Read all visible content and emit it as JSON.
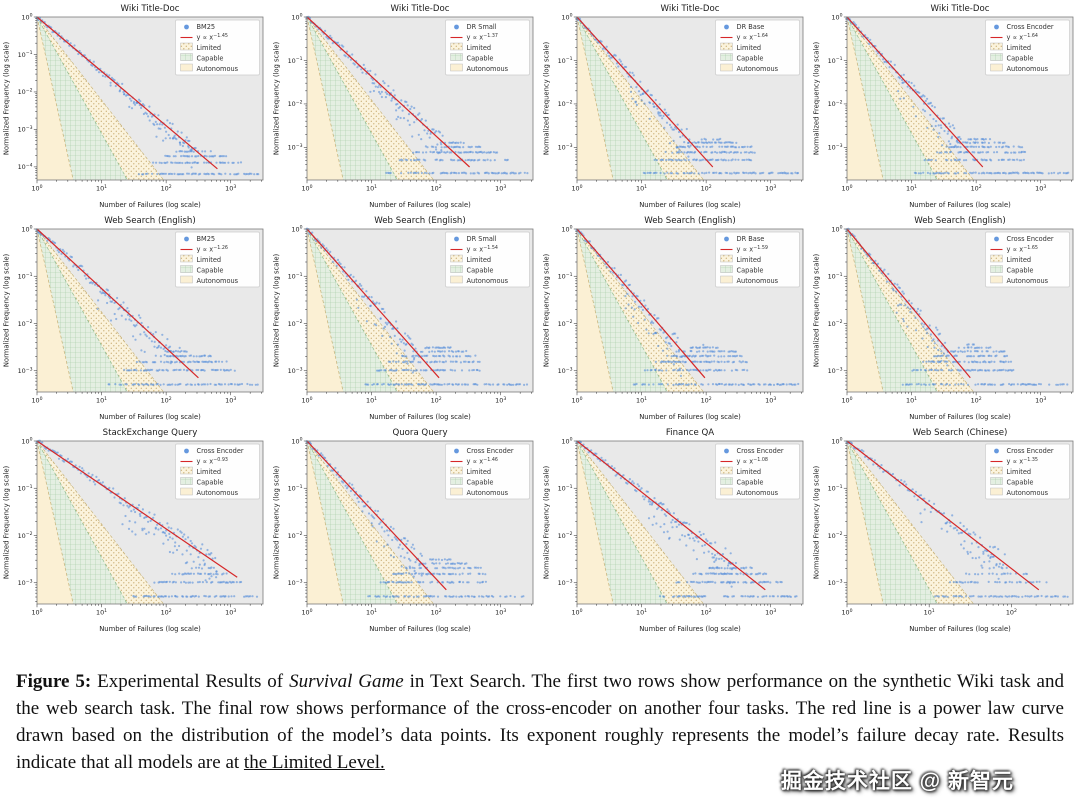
{
  "watermark": "掘金技术社区 @ 新智元",
  "caption": {
    "segments": [
      {
        "text": "Figure 5:",
        "bold": true
      },
      {
        "text": " Experimental Results of "
      },
      {
        "text": "Survival Game",
        "italic": true
      },
      {
        "text": " in Text Search. The first two rows show performance on the synthetic Wiki task and the web search task. The final row shows performance of the cross-encoder on another four tasks. The red line is a power law curve drawn based on the distribution of the model’s data points. Its exponent roughly represents the model’s failure decay rate. Results indicate that all models are at "
      },
      {
        "text": "the Limited Level.",
        "underline": true
      }
    ]
  },
  "colors": {
    "scatter": "#4a86d8",
    "fit_line": "#d62728",
    "plot_bg": "#e9e9e9",
    "limited_fill": "#fbf3dc",
    "limited_dot": "#c9ae74",
    "capable_fill": "#e4efe2",
    "capable_hatch": "#a3c9a3",
    "autonomous_fill": "#fbf0d4"
  },
  "chart_data": {
    "type": "scatter",
    "shared": {
      "xlabel": "Number of Failures (log scale)",
      "ylabel": "Normalized Frequency (log scale)",
      "xscale": "log",
      "yscale": "log",
      "fit_prefix": "y ∝ x",
      "regions": [
        "Limited",
        "Capable",
        "Autonomous"
      ],
      "description": "Each panel plots normalized frequency versus number of failures on log-log axes. Blue scatter points follow a power-law decay; the red line is the fitted power law y ∝ x^-k. Shaded wedges from the top-left corner mark the Autonomous (steepest), Capable and Limited capability regions."
    },
    "plots": [
      {
        "id": "wiki-bm25",
        "title": "Wiki Title-Doc",
        "model": "BM25",
        "exponent": 1.45,
        "fit_exponent": "−1.45",
        "x_decades": 3.5,
        "y_decades": 4.35,
        "x_ticks": [
          0,
          1,
          2,
          3
        ],
        "y_ticks": [
          0,
          -1,
          -2,
          -3,
          -4
        ],
        "seed": 11
      },
      {
        "id": "wiki-drsmall",
        "title": "Wiki Title-Doc",
        "model": "DR Small",
        "exponent": 1.37,
        "fit_exponent": "−1.37",
        "x_decades": 3.5,
        "y_decades": 3.75,
        "x_ticks": [
          0,
          1,
          2,
          3
        ],
        "y_ticks": [
          0,
          -1,
          -2,
          -3
        ],
        "seed": 22
      },
      {
        "id": "wiki-drbase",
        "title": "Wiki Title-Doc",
        "model": "DR Base",
        "exponent": 1.64,
        "fit_exponent": "−1.64",
        "x_decades": 3.5,
        "y_decades": 3.75,
        "x_ticks": [
          0,
          1,
          2,
          3
        ],
        "y_ticks": [
          0,
          -1,
          -2,
          -3
        ],
        "seed": 33
      },
      {
        "id": "wiki-crossencoder",
        "title": "Wiki Title-Doc",
        "model": "Cross Encoder",
        "exponent": 1.64,
        "fit_exponent": "−1.64",
        "x_decades": 3.5,
        "y_decades": 3.75,
        "x_ticks": [
          0,
          1,
          2,
          3
        ],
        "y_ticks": [
          0,
          -1,
          -2,
          -3
        ],
        "seed": 44
      },
      {
        "id": "web-en-bm25",
        "title": "Web Search (English)",
        "model": "BM25",
        "exponent": 1.26,
        "fit_exponent": "−1.26",
        "x_decades": 3.5,
        "y_decades": 3.45,
        "x_ticks": [
          0,
          1,
          2,
          3
        ],
        "y_ticks": [
          0,
          -1,
          -2,
          -3
        ],
        "seed": 55
      },
      {
        "id": "web-en-drsmall",
        "title": "Web Search (English)",
        "model": "DR Small",
        "exponent": 1.54,
        "fit_exponent": "−1.54",
        "x_decades": 3.5,
        "y_decades": 3.45,
        "x_ticks": [
          0,
          1,
          2,
          3
        ],
        "y_ticks": [
          0,
          -1,
          -2,
          -3
        ],
        "seed": 66
      },
      {
        "id": "web-en-drbase",
        "title": "Web Search (English)",
        "model": "DR Base",
        "exponent": 1.59,
        "fit_exponent": "−1.59",
        "x_decades": 3.5,
        "y_decades": 3.45,
        "x_ticks": [
          0,
          1,
          2,
          3
        ],
        "y_ticks": [
          0,
          -1,
          -2,
          -3
        ],
        "seed": 77
      },
      {
        "id": "web-en-crossencoder",
        "title": "Web Search (English)",
        "model": "Cross Encoder",
        "exponent": 1.65,
        "fit_exponent": "−1.65",
        "x_decades": 3.5,
        "y_decades": 3.45,
        "x_ticks": [
          0,
          1,
          2,
          3
        ],
        "y_ticks": [
          0,
          -1,
          -2,
          -3
        ],
        "seed": 88
      },
      {
        "id": "stackexchange-crossencoder",
        "title": "StackExchange Query",
        "model": "Cross Encoder",
        "exponent": 0.93,
        "fit_exponent": "−0.93",
        "x_decades": 3.5,
        "y_decades": 3.45,
        "x_ticks": [
          0,
          1,
          2,
          3
        ],
        "y_ticks": [
          0,
          -1,
          -2,
          -3
        ],
        "seed": 99
      },
      {
        "id": "quora-crossencoder",
        "title": "Quora Query",
        "model": "Cross Encoder",
        "exponent": 1.46,
        "fit_exponent": "−1.46",
        "x_decades": 3.5,
        "y_decades": 3.45,
        "x_ticks": [
          0,
          1,
          2,
          3
        ],
        "y_ticks": [
          0,
          -1,
          -2,
          -3
        ],
        "seed": 111
      },
      {
        "id": "finance-crossencoder",
        "title": "Finance QA",
        "model": "Cross Encoder",
        "exponent": 1.08,
        "fit_exponent": "−1.08",
        "x_decades": 3.5,
        "y_decades": 3.45,
        "x_ticks": [
          0,
          1,
          2,
          3
        ],
        "y_ticks": [
          0,
          -1,
          -2,
          -3
        ],
        "seed": 122
      },
      {
        "id": "web-zh-crossencoder",
        "title": "Web Search (Chinese)",
        "model": "Cross Encoder",
        "exponent": 1.35,
        "fit_exponent": "−1.35",
        "x_decades": 2.75,
        "y_decades": 3.45,
        "x_ticks": [
          0,
          1,
          2
        ],
        "y_ticks": [
          0,
          -1,
          -2,
          -3
        ],
        "seed": 133
      }
    ]
  }
}
